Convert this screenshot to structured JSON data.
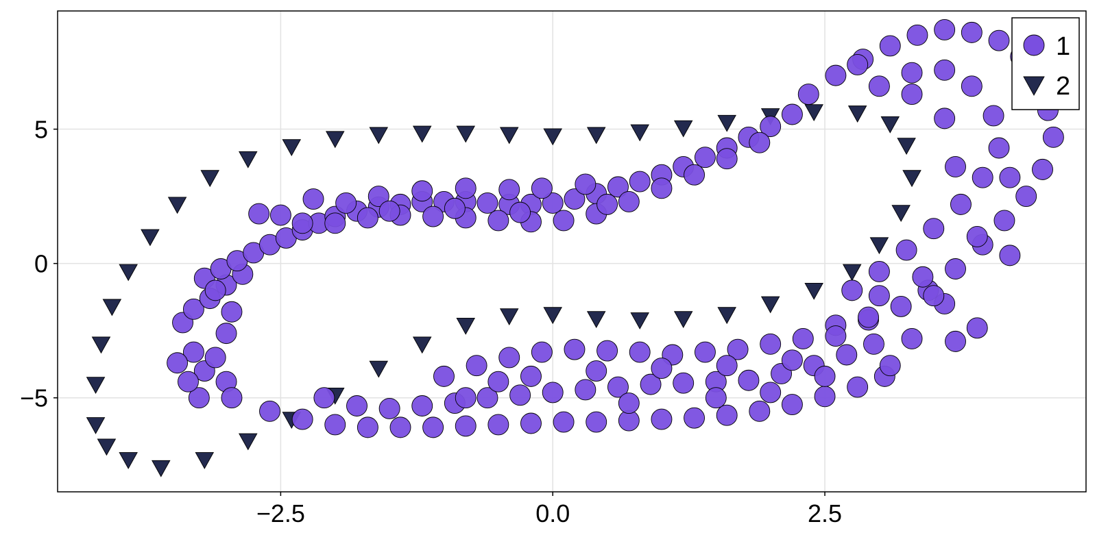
{
  "chart_data": {
    "type": "scatter",
    "title": "",
    "xlabel": "",
    "ylabel": "",
    "xlim": [
      -4.55,
      4.9
    ],
    "ylim": [
      -8.5,
      9.4
    ],
    "xticks": [
      -2.5,
      0.0,
      2.5
    ],
    "xtick_labels": [
      "−2.5",
      "0.0",
      "2.5"
    ],
    "yticks": [
      -5,
      0,
      5
    ],
    "ytick_labels": [
      "−5",
      "0",
      "5"
    ],
    "grid": true,
    "legend": "top-right",
    "series": [
      {
        "name": "1",
        "marker": "circle",
        "color": "#7a4fe0",
        "points": [
          [
            -3.4,
            -2.2
          ],
          [
            -3.3,
            -1.7
          ],
          [
            -3.15,
            -1.3
          ],
          [
            -3.0,
            -0.8
          ],
          [
            -2.85,
            -0.4
          ],
          [
            -3.2,
            -0.55
          ],
          [
            -3.05,
            -0.2
          ],
          [
            -2.9,
            0.1
          ],
          [
            -2.75,
            0.4
          ],
          [
            -2.6,
            0.7
          ],
          [
            -2.45,
            0.95
          ],
          [
            -2.3,
            1.25
          ],
          [
            -2.15,
            1.5
          ],
          [
            -2.0,
            1.75
          ],
          [
            -1.8,
            1.95
          ],
          [
            -1.6,
            2.1
          ],
          [
            -1.4,
            2.2
          ],
          [
            -1.2,
            2.3
          ],
          [
            -1.0,
            2.3
          ],
          [
            -0.8,
            2.3
          ],
          [
            -0.6,
            2.25
          ],
          [
            -0.4,
            2.2
          ],
          [
            -0.2,
            2.2
          ],
          [
            0.0,
            2.25
          ],
          [
            0.2,
            2.4
          ],
          [
            0.4,
            2.6
          ],
          [
            0.6,
            2.85
          ],
          [
            0.8,
            3.05
          ],
          [
            1.0,
            3.3
          ],
          [
            1.2,
            3.6
          ],
          [
            1.4,
            3.95
          ],
          [
            1.6,
            4.3
          ],
          [
            1.8,
            4.7
          ],
          [
            2.0,
            5.1
          ],
          [
            2.2,
            5.55
          ],
          [
            -2.3,
            1.5
          ],
          [
            -2.0,
            1.5
          ],
          [
            -1.7,
            1.7
          ],
          [
            -1.4,
            1.8
          ],
          [
            -1.1,
            1.75
          ],
          [
            -0.8,
            1.7
          ],
          [
            -0.5,
            1.6
          ],
          [
            -0.2,
            1.55
          ],
          [
            0.1,
            1.6
          ],
          [
            0.4,
            1.85
          ],
          [
            0.7,
            2.3
          ],
          [
            1.0,
            2.8
          ],
          [
            1.3,
            3.3
          ],
          [
            1.6,
            3.9
          ],
          [
            1.9,
            4.5
          ],
          [
            -1.6,
            2.5
          ],
          [
            -1.2,
            2.7
          ],
          [
            -0.8,
            2.8
          ],
          [
            -0.4,
            2.75
          ],
          [
            -0.1,
            2.8
          ],
          [
            0.3,
            2.95
          ],
          [
            -2.7,
            1.85
          ],
          [
            -2.5,
            1.8
          ],
          [
            -2.2,
            2.4
          ],
          [
            -1.9,
            2.25
          ],
          [
            -1.5,
            1.95
          ],
          [
            -0.9,
            2.05
          ],
          [
            -0.3,
            1.9
          ],
          [
            0.5,
            2.2
          ],
          [
            -3.3,
            -3.3
          ],
          [
            -3.2,
            -4.0
          ],
          [
            -3.1,
            -3.5
          ],
          [
            -3.0,
            -4.4
          ],
          [
            -2.95,
            -5.0
          ],
          [
            -3.25,
            -5.0
          ],
          [
            -3.35,
            -4.4
          ],
          [
            -3.45,
            -3.7
          ],
          [
            -3.0,
            -2.6
          ],
          [
            -3.1,
            -1.0
          ],
          [
            -2.95,
            -1.8
          ],
          [
            2.35,
            6.3
          ],
          [
            2.6,
            7.0
          ],
          [
            2.85,
            7.6
          ],
          [
            3.1,
            8.1
          ],
          [
            3.35,
            8.5
          ],
          [
            3.6,
            8.7
          ],
          [
            3.85,
            8.6
          ],
          [
            4.1,
            8.3
          ],
          [
            4.3,
            7.7
          ],
          [
            4.45,
            6.8
          ],
          [
            4.55,
            5.7
          ],
          [
            4.6,
            4.7
          ],
          [
            4.5,
            3.5
          ],
          [
            4.35,
            2.5
          ],
          [
            4.15,
            1.6
          ],
          [
            3.95,
            0.7
          ],
          [
            3.7,
            -0.2
          ],
          [
            3.45,
            -1.0
          ],
          [
            3.2,
            -1.6
          ],
          [
            2.9,
            -2.1
          ],
          [
            2.6,
            -2.3
          ],
          [
            3.0,
            6.6
          ],
          [
            3.3,
            7.1
          ],
          [
            3.6,
            7.2
          ],
          [
            3.85,
            6.6
          ],
          [
            4.05,
            5.5
          ],
          [
            4.1,
            4.3
          ],
          [
            3.95,
            3.2
          ],
          [
            3.75,
            2.2
          ],
          [
            3.5,
            1.3
          ],
          [
            3.25,
            0.5
          ],
          [
            3.0,
            -0.3
          ],
          [
            2.75,
            -1.0
          ],
          [
            3.7,
            3.6
          ],
          [
            4.2,
            3.2
          ],
          [
            3.6,
            5.4
          ],
          [
            3.3,
            6.3
          ],
          [
            2.8,
            7.4
          ],
          [
            3.9,
            1.0
          ],
          [
            4.2,
            0.3
          ],
          [
            3.4,
            -0.5
          ],
          [
            3.6,
            -1.5
          ],
          [
            3.9,
            -2.4
          ],
          [
            3.3,
            -2.8
          ],
          [
            3.7,
            -2.9
          ],
          [
            3.5,
            -1.2
          ],
          [
            -2.6,
            -5.5
          ],
          [
            -2.3,
            -5.8
          ],
          [
            -2.0,
            -6.0
          ],
          [
            -1.7,
            -6.1
          ],
          [
            -1.4,
            -6.1
          ],
          [
            -1.1,
            -6.1
          ],
          [
            -0.8,
            -6.05
          ],
          [
            -0.5,
            -6.0
          ],
          [
            -0.2,
            -5.95
          ],
          [
            0.1,
            -5.9
          ],
          [
            0.4,
            -5.9
          ],
          [
            0.7,
            -5.85
          ],
          [
            1.0,
            -5.8
          ],
          [
            1.3,
            -5.75
          ],
          [
            1.6,
            -5.65
          ],
          [
            1.9,
            -5.5
          ],
          [
            2.2,
            -5.25
          ],
          [
            2.5,
            -4.95
          ],
          [
            2.8,
            -4.6
          ],
          [
            3.05,
            -4.2
          ],
          [
            -2.1,
            -5.0
          ],
          [
            -1.8,
            -5.3
          ],
          [
            -1.5,
            -5.4
          ],
          [
            -1.2,
            -5.3
          ],
          [
            -0.9,
            -5.2
          ],
          [
            -0.6,
            -5.0
          ],
          [
            -0.3,
            -4.9
          ],
          [
            0.0,
            -4.8
          ],
          [
            0.3,
            -4.7
          ],
          [
            0.6,
            -4.6
          ],
          [
            0.9,
            -4.5
          ],
          [
            1.2,
            -4.45
          ],
          [
            1.5,
            -4.4
          ],
          [
            1.8,
            -4.35
          ],
          [
            2.1,
            -4.1
          ],
          [
            2.4,
            -3.8
          ],
          [
            2.7,
            -3.4
          ],
          [
            2.95,
            -3.0
          ],
          [
            -1.0,
            -4.2
          ],
          [
            -0.7,
            -3.8
          ],
          [
            -0.4,
            -3.5
          ],
          [
            -0.1,
            -3.3
          ],
          [
            0.2,
            -3.2
          ],
          [
            0.5,
            -3.25
          ],
          [
            0.8,
            -3.3
          ],
          [
            1.1,
            -3.4
          ],
          [
            1.4,
            -3.3
          ],
          [
            1.7,
            -3.2
          ],
          [
            2.0,
            -3.0
          ],
          [
            2.3,
            -2.8
          ],
          [
            -0.8,
            -5.0
          ],
          [
            -0.2,
            -4.2
          ],
          [
            0.4,
            -4.0
          ],
          [
            1.0,
            -3.9
          ],
          [
            1.6,
            -3.8
          ],
          [
            2.2,
            -3.6
          ],
          [
            2.6,
            -2.7
          ],
          [
            2.9,
            -2.0
          ],
          [
            3.0,
            -1.2
          ],
          [
            3.1,
            -3.8
          ],
          [
            2.5,
            -4.2
          ],
          [
            -0.5,
            -4.4
          ],
          [
            0.7,
            -5.2
          ],
          [
            1.5,
            -5.0
          ],
          [
            2.0,
            -4.8
          ]
        ]
      },
      {
        "name": "2",
        "marker": "triangle-down",
        "color": "#232a4e",
        "points": [
          [
            -4.2,
            -6.0
          ],
          [
            -4.2,
            -4.5
          ],
          [
            -4.15,
            -3.0
          ],
          [
            -4.05,
            -1.6
          ],
          [
            -3.9,
            -0.3
          ],
          [
            -3.7,
            1.0
          ],
          [
            -3.45,
            2.2
          ],
          [
            -3.15,
            3.2
          ],
          [
            -2.8,
            3.9
          ],
          [
            -2.4,
            4.35
          ],
          [
            -2.0,
            4.65
          ],
          [
            -1.6,
            4.8
          ],
          [
            -1.2,
            4.85
          ],
          [
            -0.8,
            4.85
          ],
          [
            -0.4,
            4.8
          ],
          [
            0.0,
            4.75
          ],
          [
            0.4,
            4.8
          ],
          [
            0.8,
            4.9
          ],
          [
            1.2,
            5.05
          ],
          [
            1.6,
            5.25
          ],
          [
            2.0,
            5.5
          ],
          [
            2.4,
            5.65
          ],
          [
            2.8,
            5.6
          ],
          [
            3.1,
            5.2
          ],
          [
            3.25,
            4.4
          ],
          [
            3.3,
            3.2
          ],
          [
            3.2,
            1.9
          ],
          [
            3.0,
            0.7
          ],
          [
            2.75,
            -0.3
          ],
          [
            2.4,
            -1.0
          ],
          [
            2.0,
            -1.5
          ],
          [
            1.6,
            -1.9
          ],
          [
            1.2,
            -2.05
          ],
          [
            0.8,
            -2.1
          ],
          [
            0.4,
            -2.05
          ],
          [
            0.0,
            -1.9
          ],
          [
            -0.4,
            -1.95
          ],
          [
            -0.8,
            -2.3
          ],
          [
            -1.2,
            -3.0
          ],
          [
            -1.6,
            -3.9
          ],
          [
            -2.0,
            -4.9
          ],
          [
            -2.4,
            -5.8
          ],
          [
            -2.8,
            -6.6
          ],
          [
            -3.2,
            -7.3
          ],
          [
            -3.6,
            -7.6
          ],
          [
            -3.9,
            -7.3
          ],
          [
            -4.1,
            -6.8
          ]
        ]
      }
    ]
  }
}
